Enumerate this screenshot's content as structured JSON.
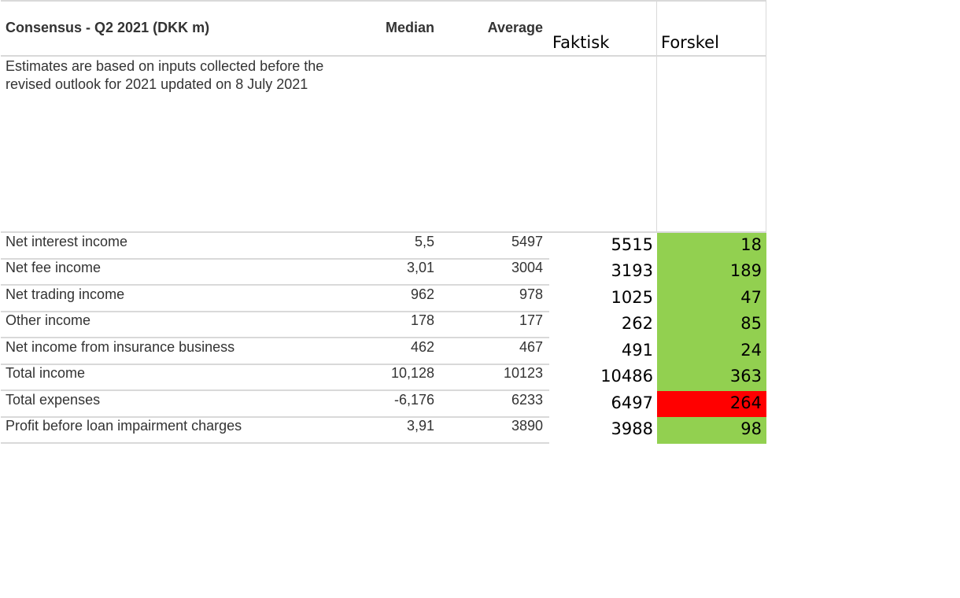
{
  "table": {
    "title": "Consensus - Q2 2021 (DKK m)",
    "col_median": "Median",
    "col_average": "Average",
    "col_actual": "Faktisk",
    "col_diff": "Forskel",
    "note": "Estimates are based on inputs collected before the revised outlook for 2021 updated on 8 July 2021",
    "rows": [
      {
        "label": "Net interest income",
        "median": "5,5",
        "average": "5497",
        "actual": "5515",
        "diff": "18",
        "diff_status": "positive"
      },
      {
        "label": "Net fee income",
        "median": "3,01",
        "average": "3004",
        "actual": "3193",
        "diff": "189",
        "diff_status": "positive"
      },
      {
        "label": "Net trading income",
        "median": "962",
        "average": "978",
        "actual": "1025",
        "diff": "47",
        "diff_status": "positive"
      },
      {
        "label": "Other income",
        "median": "178",
        "average": "177",
        "actual": "262",
        "diff": "85",
        "diff_status": "positive"
      },
      {
        "label": "Net income from insurance business",
        "median": "462",
        "average": "467",
        "actual": "491",
        "diff": "24",
        "diff_status": "positive"
      },
      {
        "label": "Total income",
        "median": "10,128",
        "average": "10123",
        "actual": "10486",
        "diff": "363",
        "diff_status": "positive"
      },
      {
        "label": "Total expenses",
        "median": "-6,176",
        "average": "6233",
        "actual": "6497",
        "diff": "264",
        "diff_status": "negative"
      },
      {
        "label": "Profit before loan impairment charges",
        "median": "3,91",
        "average": "3890",
        "actual": "3988",
        "diff": "98",
        "diff_status": "positive"
      }
    ]
  },
  "colors": {
    "positive": "#92d050",
    "negative": "#ff0000",
    "gridline": "#d9d9d9",
    "text": "#333333"
  }
}
